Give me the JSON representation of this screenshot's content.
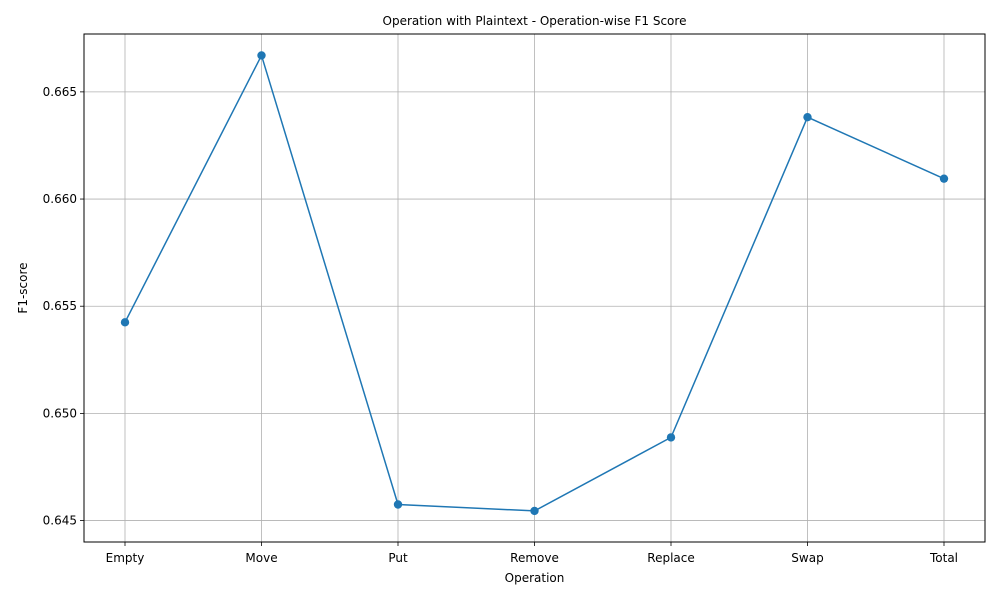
{
  "chart_data": {
    "type": "line",
    "title": "Operation with Plaintext - Operation-wise F1 Score",
    "xlabel": "Operation",
    "ylabel": "F1-score",
    "categories": [
      "Empty",
      "Move",
      "Put",
      "Remove",
      "Replace",
      "Swap",
      "Total"
    ],
    "series": [
      {
        "values": [
          0.65425,
          0.6667,
          0.64575,
          0.64545,
          0.64888,
          0.66382,
          0.66095
        ]
      }
    ],
    "yticks": [
      0.645,
      0.65,
      0.655,
      0.66,
      0.665
    ],
    "ytick_labels": [
      "0.645",
      "0.650",
      "0.655",
      "0.660",
      "0.665"
    ],
    "ylim": [
      0.644,
      0.6677
    ],
    "grid": true,
    "markers": true,
    "color": "#1f77b4"
  }
}
